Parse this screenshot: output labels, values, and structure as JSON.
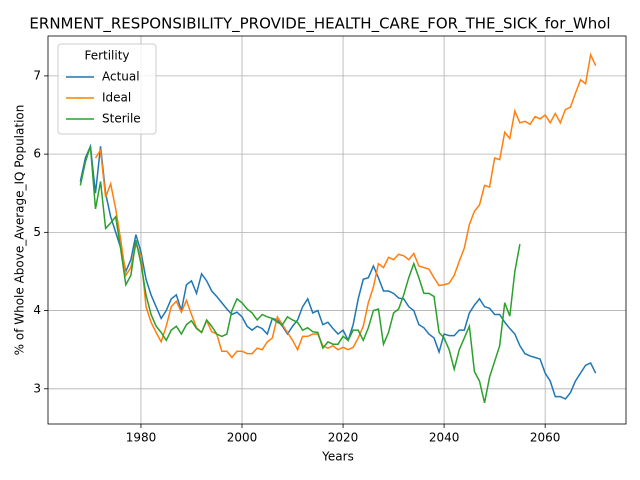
{
  "chart_data": {
    "type": "line",
    "title": "ERNMENT_RESPONSIBILITY_PROVIDE_HEALTH_CARE_FOR_THE_SICK_for_Whol",
    "xlabel": "Years",
    "ylabel": "% of Whole Above_Average_IQ Population",
    "legend_title": "Fertility",
    "legend": "upper left",
    "grid": true,
    "xlim": [
      1961.6,
      2076
    ],
    "ylim": [
      2.55,
      7.51
    ],
    "xticks": [
      1980,
      2000,
      2020,
      2040,
      2060
    ],
    "yticks": [
      3,
      4,
      5,
      6,
      7
    ],
    "x": [
      1968,
      1969,
      1970,
      1971,
      1972,
      1973,
      1974,
      1975,
      1976,
      1977,
      1978,
      1979,
      1980,
      1981,
      1982,
      1983,
      1984,
      1985,
      1986,
      1987,
      1988,
      1989,
      1990,
      1991,
      1992,
      1993,
      1994,
      1995,
      1996,
      1997,
      1998,
      1999,
      2000,
      2001,
      2002,
      2003,
      2004,
      2005,
      2006,
      2007,
      2008,
      2009,
      2010,
      2011,
      2012,
      2013,
      2014,
      2015,
      2016,
      2017,
      2018,
      2019,
      2020,
      2021,
      2022,
      2023,
      2024,
      2025,
      2026,
      2027,
      2028,
      2029,
      2030,
      2031,
      2032,
      2033,
      2034,
      2035,
      2036,
      2037,
      2038,
      2039,
      2040,
      2041,
      2042,
      2043,
      2044,
      2045,
      2046,
      2047,
      2048,
      2049,
      2050,
      2051,
      2052,
      2053,
      2054,
      2055,
      2056,
      2057,
      2058,
      2059,
      2060,
      2061,
      2062,
      2063,
      2064,
      2065,
      2066,
      2067,
      2068,
      2069,
      2070
    ],
    "series": [
      {
        "name": "Actual",
        "color": "#1f77b4",
        "values": [
          5.65,
          5.95,
          6.1,
          5.5,
          6.1,
          5.5,
          5.2,
          5.0,
          4.8,
          4.5,
          4.65,
          4.97,
          4.75,
          4.4,
          4.2,
          4.05,
          3.9,
          4.0,
          4.15,
          4.2,
          4.0,
          4.33,
          4.38,
          4.22,
          4.47,
          4.38,
          4.25,
          4.18,
          4.1,
          4.02,
          3.95,
          3.98,
          3.92,
          3.8,
          3.75,
          3.8,
          3.77,
          3.7,
          3.9,
          3.88,
          3.8,
          3.7,
          3.8,
          3.88,
          4.05,
          4.15,
          3.97,
          4.0,
          3.82,
          3.85,
          3.77,
          3.7,
          3.75,
          3.62,
          3.82,
          4.15,
          4.4,
          4.42,
          4.57,
          4.42,
          4.25,
          4.25,
          4.22,
          4.16,
          4.15,
          4.05,
          4.0,
          3.82,
          3.78,
          3.7,
          3.65,
          3.47,
          3.7,
          3.68,
          3.68,
          3.75,
          3.75,
          3.97,
          4.07,
          4.15,
          4.05,
          4.03,
          3.95,
          3.95,
          3.85,
          3.77,
          3.7,
          3.55,
          3.45,
          3.42,
          3.4,
          3.38,
          3.2,
          3.1,
          2.9,
          2.9,
          2.87,
          2.95,
          3.1,
          3.2,
          3.3,
          3.33,
          3.2
        ]
      },
      {
        "name": "Ideal",
        "color": "#ff7f0e",
        "values": [
          null,
          null,
          null,
          5.95,
          6.05,
          5.45,
          5.62,
          5.3,
          4.9,
          4.45,
          4.55,
          4.85,
          4.7,
          4.05,
          3.85,
          3.72,
          3.6,
          3.8,
          4.05,
          4.12,
          3.98,
          4.13,
          3.95,
          3.78,
          3.72,
          3.87,
          3.73,
          3.7,
          3.48,
          3.48,
          3.4,
          3.48,
          3.48,
          3.45,
          3.45,
          3.52,
          3.5,
          3.6,
          3.65,
          3.92,
          3.82,
          3.72,
          3.62,
          3.5,
          3.67,
          3.67,
          3.7,
          3.7,
          3.55,
          3.52,
          3.55,
          3.5,
          3.53,
          3.5,
          3.53,
          3.65,
          3.8,
          4.1,
          4.3,
          4.6,
          4.55,
          4.68,
          4.65,
          4.72,
          4.7,
          4.65,
          4.73,
          4.57,
          4.55,
          4.53,
          4.42,
          4.32,
          4.33,
          4.35,
          4.45,
          4.63,
          4.8,
          5.1,
          5.27,
          5.35,
          5.6,
          5.58,
          5.95,
          5.93,
          6.28,
          6.2,
          6.55,
          6.4,
          6.42,
          6.38,
          6.48,
          6.45,
          6.5,
          6.4,
          6.52,
          6.4,
          6.57,
          6.6,
          6.78,
          6.95,
          6.9,
          7.27,
          7.13
        ]
      },
      {
        "name": "Sterile",
        "color": "#2ca02c",
        "values": [
          5.6,
          5.9,
          6.1,
          5.3,
          5.65,
          5.05,
          5.12,
          5.2,
          4.78,
          4.33,
          4.45,
          4.9,
          4.6,
          4.2,
          3.95,
          3.8,
          3.72,
          3.62,
          3.75,
          3.8,
          3.7,
          3.82,
          3.87,
          3.77,
          3.72,
          3.88,
          3.8,
          3.7,
          3.67,
          3.7,
          4.0,
          4.15,
          4.1,
          4.02,
          3.97,
          3.88,
          3.95,
          3.92,
          3.9,
          3.85,
          3.82,
          3.92,
          3.88,
          3.85,
          3.75,
          3.78,
          3.73,
          3.72,
          3.52,
          3.6,
          3.57,
          3.57,
          3.67,
          3.62,
          3.75,
          3.75,
          3.62,
          3.78,
          4.0,
          4.02,
          3.57,
          3.72,
          3.97,
          4.02,
          4.2,
          4.42,
          4.6,
          4.42,
          4.22,
          4.22,
          4.18,
          3.72,
          3.65,
          3.5,
          3.25,
          3.5,
          3.65,
          3.8,
          3.22,
          3.1,
          2.82,
          3.15,
          3.35,
          3.55,
          4.1,
          3.93,
          4.5,
          4.85,
          null,
          null,
          null,
          null,
          null,
          null,
          null,
          null,
          null,
          null,
          null,
          null,
          null,
          null,
          null
        ]
      }
    ]
  }
}
